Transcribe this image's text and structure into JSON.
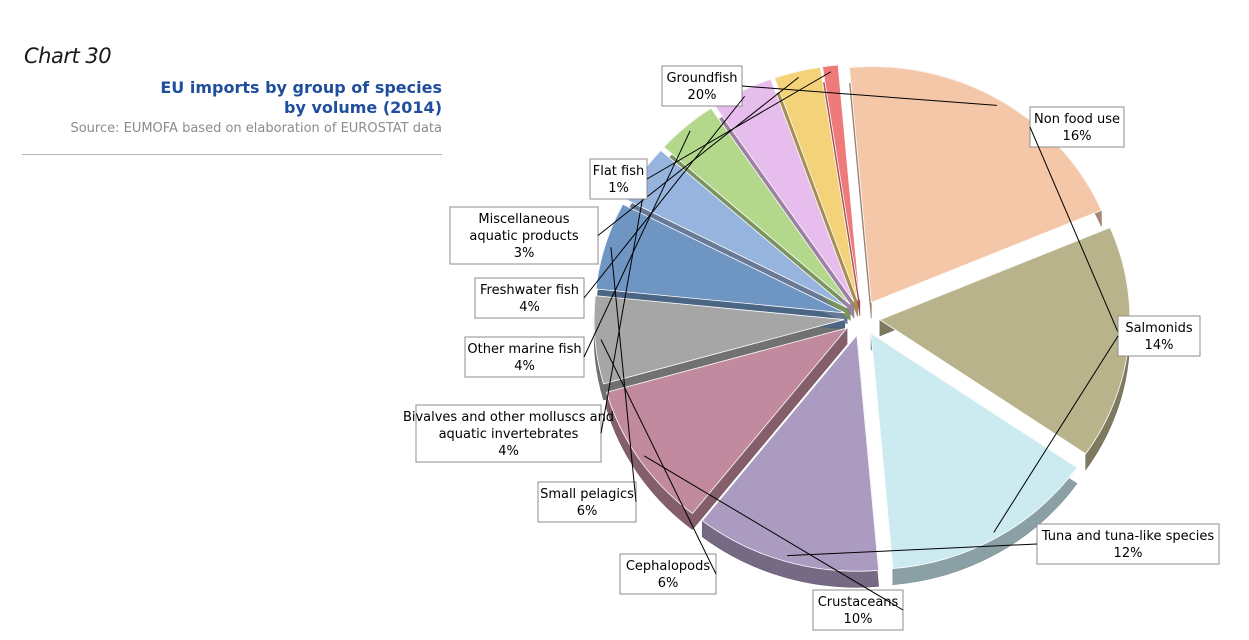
{
  "header": {
    "chart_number": "Chart 30",
    "title_line1": "EU imports by group of species",
    "title_line2": "by volume (2014)",
    "source": "Source: EUMOFA based on elaboration of EUROSTAT data"
  },
  "chart_data": {
    "type": "pie",
    "title": "EU imports by group of species by volume (2014)",
    "unit": "%",
    "slices": [
      {
        "name": "Groundfish",
        "value": 20,
        "label": "20%",
        "color": "#F4C7A9"
      },
      {
        "name": "Non food use",
        "value": 16,
        "label": "16%",
        "color": "#B9B38C"
      },
      {
        "name": "Salmonids",
        "value": 14,
        "label": "14%",
        "color": "#CBEBF1"
      },
      {
        "name": "Tuna and tuna-like species",
        "value": 12,
        "label": "12%",
        "color": "#AC9BC0"
      },
      {
        "name": "Crustaceans",
        "value": 10,
        "label": "10%",
        "color": "#C28A9E"
      },
      {
        "name": "Cephalopods",
        "value": 6,
        "label": "6%",
        "color": "#A6A6A6"
      },
      {
        "name": "Small pelagics",
        "value": 6,
        "label": "6%",
        "color": "#6F95C3"
      },
      {
        "name": "Bivalves and other molluscs and aquatic invertebrates",
        "value": 4,
        "label": "4%",
        "color": "#97B4DE"
      },
      {
        "name": "Other marine fish",
        "value": 4,
        "label": "4%",
        "color": "#B3D88C"
      },
      {
        "name": "Freshwater fish",
        "value": 4,
        "label": "4%",
        "color": "#E7BDEE"
      },
      {
        "name": "Miscellaneous aquatic products",
        "value": 3,
        "label": "3%",
        "color": "#F3D27A"
      },
      {
        "name": "Flat fish",
        "value": 1,
        "label": "1%",
        "color": "#EE7A7A"
      }
    ],
    "exploded": true,
    "style": "3d"
  }
}
